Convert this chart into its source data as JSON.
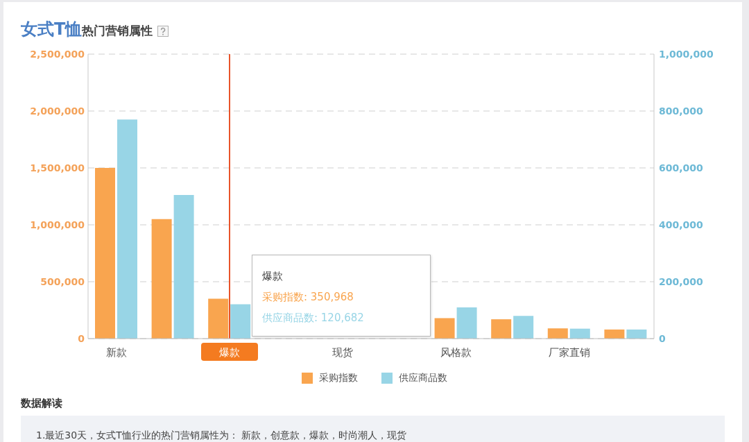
{
  "chart_data": {
    "type": "bar",
    "title": "女式T恤",
    "subtitle": "热门营销属性",
    "categories": [
      "新款",
      null,
      "爆款",
      null,
      "现货",
      null,
      "风格款",
      null,
      "厂家直销",
      null
    ],
    "series": [
      {
        "name": "采购指数",
        "color": "#f9a54f",
        "values": [
          1500000,
          1050000,
          350968,
          null,
          null,
          null,
          180000,
          170000,
          90000,
          80000
        ]
      },
      {
        "name": "供应商品数",
        "color": "#98d5e6",
        "axis": "y2",
        "values": [
          770000,
          505000,
          120682,
          null,
          null,
          null,
          110000,
          80000,
          35000,
          32000
        ]
      }
    ],
    "ylim": [
      0,
      2500000
    ],
    "yticks": [
      0,
      {
        "value": 500000,
        "label": "500,000"
      },
      {
        "value": 1000000,
        "label": "1,000,000"
      },
      {
        "value": 1500000,
        "label": "1,500,000"
      },
      {
        "value": 2000000,
        "label": "2,000,000"
      },
      {
        "value": 2500000,
        "label": "2,500,000"
      }
    ],
    "y2lim": [
      0,
      1000000
    ],
    "y2ticks": [
      0,
      {
        "value": 200000,
        "label": "200,000"
      },
      {
        "value": 400000,
        "label": "400,000"
      },
      {
        "value": 600000,
        "label": "600,000"
      },
      {
        "value": 800000,
        "label": "800,000"
      },
      {
        "value": 1000000,
        "label": "1,000,000"
      }
    ],
    "grid": "y",
    "legend": "bottom",
    "ref_lines": [
      {
        "axis": "x",
        "value": "爆款",
        "color": "#e8542a"
      }
    ],
    "annotations": [
      "爆款",
      "采购指数: 350,968",
      "供应商品数: 120,682",
      "数据解读",
      "1.最近30天，女式T恤行业的热门营销属性为： 新款，创意款，爆款，时尚潮人，现货"
    ]
  }
}
